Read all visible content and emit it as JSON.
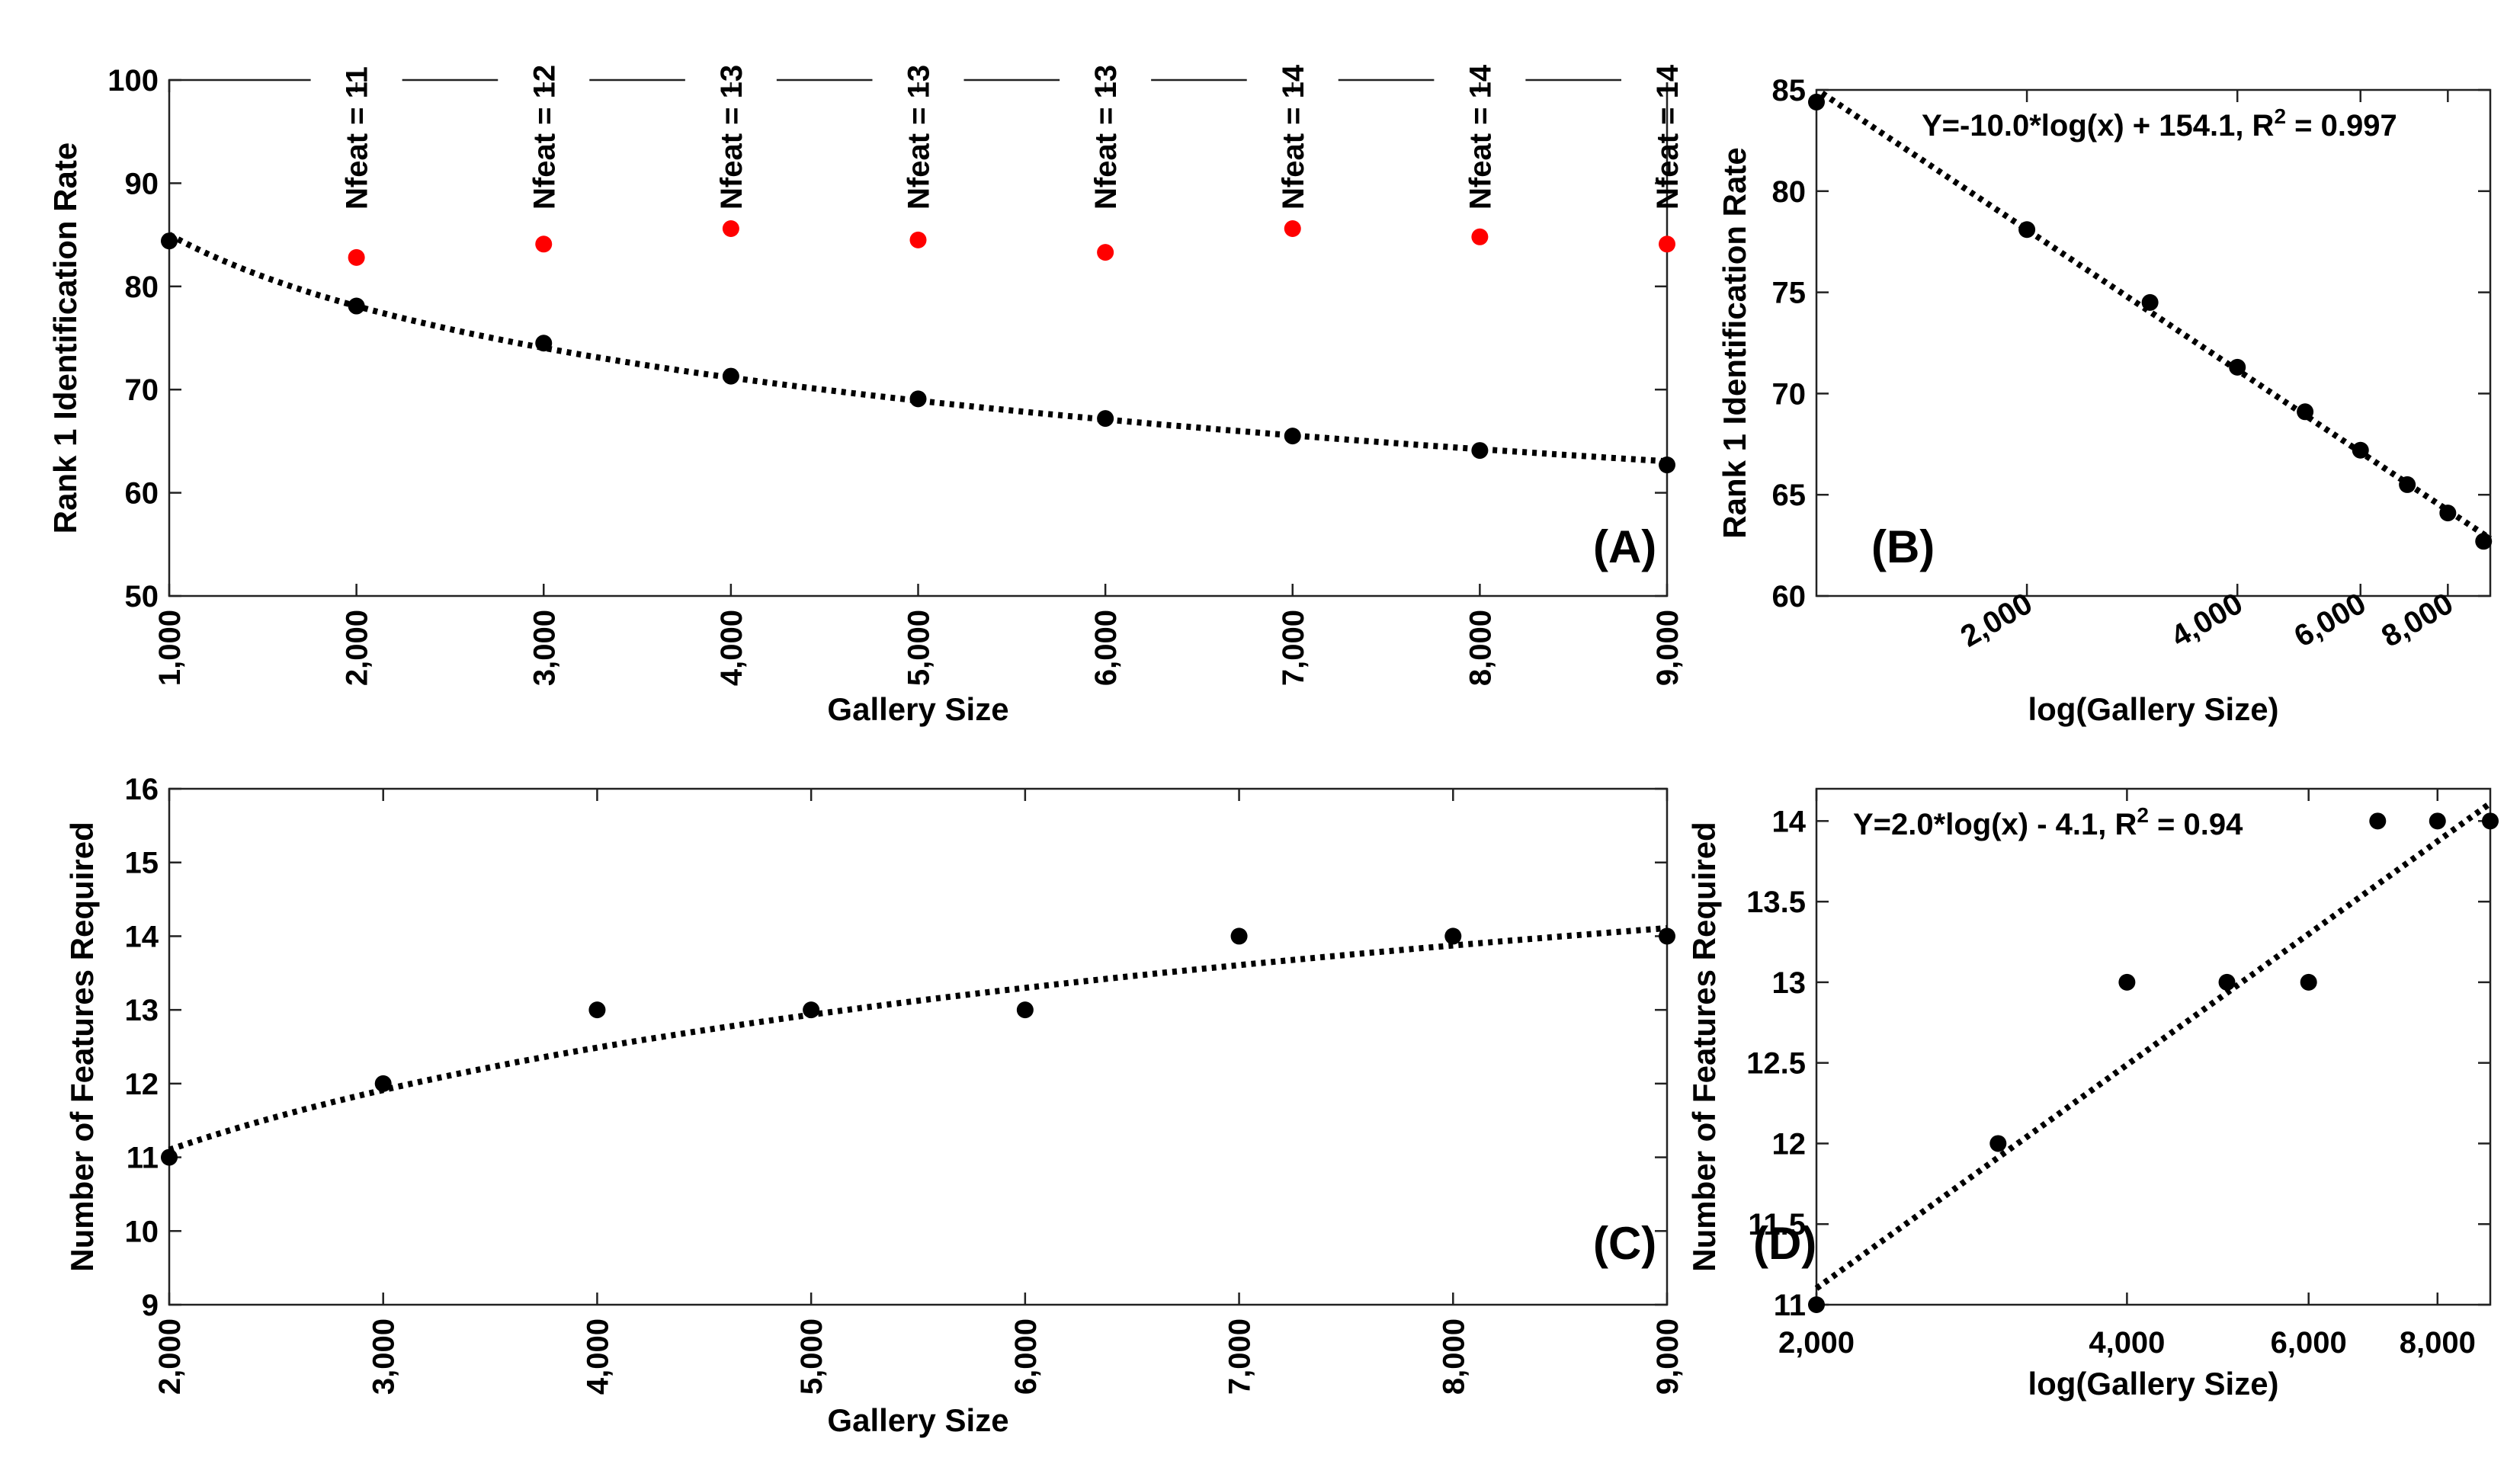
{
  "chart_data": [
    {
      "panel": "(A)",
      "type": "scatter",
      "xlabel": "Gallery Size",
      "ylabel": "Rank 1 Identification Rate",
      "xlim": [
        1000,
        9000
      ],
      "ylim": [
        50,
        100
      ],
      "xticks": [
        1000,
        2000,
        3000,
        4000,
        5000,
        6000,
        7000,
        8000,
        9000
      ],
      "xtick_labels": [
        "1,000",
        "2,000",
        "3,000",
        "4,000",
        "5,000",
        "6,000",
        "7,000",
        "8,000",
        "9,000"
      ],
      "yticks": [
        50,
        60,
        70,
        80,
        90,
        100
      ],
      "ytick_labels": [
        "50",
        "60",
        "70",
        "80",
        "90",
        "100"
      ],
      "series": [
        {
          "name": "rank1",
          "color": "#000000",
          "x": [
            1000,
            2000,
            3000,
            4000,
            5000,
            6000,
            7000,
            8000,
            9000
          ],
          "y": [
            84.4,
            78.1,
            74.5,
            71.3,
            69.1,
            67.2,
            65.5,
            64.1,
            62.7
          ]
        },
        {
          "name": "nfeat_rank1",
          "color": "#ff0000",
          "x": [
            2000,
            3000,
            4000,
            5000,
            6000,
            7000,
            8000,
            9000
          ],
          "y": [
            82.8,
            84.1,
            85.6,
            84.5,
            83.3,
            85.6,
            84.8,
            84.1
          ]
        }
      ],
      "fit": {
        "form": "log",
        "a": -10.0,
        "b": 154.1
      },
      "annotations": [
        "Nfeat = 11",
        "Nfeat = 12",
        "Nfeat = 13",
        "Nfeat = 13",
        "Nfeat = 13",
        "Nfeat = 14",
        "Nfeat = 14",
        "Nfeat = 14"
      ]
    },
    {
      "panel": "(B)",
      "type": "scatter",
      "xscale": "log",
      "xlabel": "log(Gallery Size)",
      "ylabel": "Rank 1 Identification Rate",
      "xlim": [
        1000,
        9200
      ],
      "ylim": [
        60,
        85
      ],
      "xticks": [
        2000,
        4000,
        6000,
        8000
      ],
      "xtick_labels": [
        "2,000",
        "4,000",
        "6,000",
        "8,000"
      ],
      "yticks": [
        60,
        65,
        70,
        75,
        80,
        85
      ],
      "ytick_labels": [
        "60",
        "65",
        "70",
        "75",
        "80",
        "85"
      ],
      "series": [
        {
          "name": "rank1",
          "color": "#000000",
          "x": [
            1000,
            2000,
            3000,
            4000,
            5000,
            6000,
            7000,
            8000,
            9000
          ],
          "y": [
            84.4,
            78.1,
            74.5,
            71.3,
            69.1,
            67.2,
            65.5,
            64.1,
            62.7
          ]
        }
      ],
      "fit": {
        "form": "log",
        "a": -10.0,
        "b": 154.1
      },
      "equation": {
        "main": "Y=-10.0*log(x) + 154.1, R",
        "sup": "2",
        "tail": " = 0.997"
      }
    },
    {
      "panel": "(C)",
      "type": "scatter",
      "xlabel": "Gallery Size",
      "ylabel": "Number of Features Required",
      "xlim": [
        2000,
        9000
      ],
      "ylim": [
        9,
        16
      ],
      "xticks": [
        2000,
        3000,
        4000,
        5000,
        6000,
        7000,
        8000,
        9000
      ],
      "xtick_labels": [
        "2,000",
        "3,000",
        "4,000",
        "5,000",
        "6,000",
        "7,000",
        "8,000",
        "9,000"
      ],
      "yticks": [
        9,
        10,
        11,
        12,
        13,
        14,
        15,
        16
      ],
      "ytick_labels": [
        "9",
        "10",
        "11",
        "12",
        "13",
        "14",
        "15",
        "16"
      ],
      "series": [
        {
          "name": "nfeat",
          "color": "#000000",
          "x": [
            2000,
            3000,
            4000,
            5000,
            6000,
            7000,
            8000,
            9000
          ],
          "y": [
            11,
            12,
            13,
            13,
            13,
            14,
            14,
            14
          ]
        }
      ],
      "fit": {
        "form": "log",
        "a": 2.0,
        "b": -4.1
      }
    },
    {
      "panel": "(D)",
      "type": "scatter",
      "xscale": "log",
      "xlabel": "log(Gallery Size)",
      "ylabel": "Number of Features Required",
      "xlim": [
        2000,
        9000
      ],
      "ylim": [
        11,
        14.2
      ],
      "xticks": [
        2000,
        4000,
        6000,
        8000
      ],
      "xtick_labels": [
        "2,000",
        "4,000",
        "6,000",
        "8,000"
      ],
      "yticks": [
        11,
        11.5,
        12,
        12.5,
        13,
        13.5,
        14
      ],
      "ytick_labels": [
        "11",
        "11.5",
        "12",
        "12.5",
        "13",
        "13.5",
        "14"
      ],
      "series": [
        {
          "name": "nfeat",
          "color": "#000000",
          "x": [
            2000,
            3000,
            4000,
            5000,
            6000,
            7000,
            8000,
            9000
          ],
          "y": [
            11,
            12,
            13,
            13,
            13,
            14,
            14,
            14
          ]
        }
      ],
      "fit": {
        "form": "log",
        "a": 2.0,
        "b": -4.1
      },
      "equation": {
        "main": "Y=2.0*log(x) - 4.1, R",
        "sup": "2",
        "tail": " = 0.94"
      }
    }
  ]
}
